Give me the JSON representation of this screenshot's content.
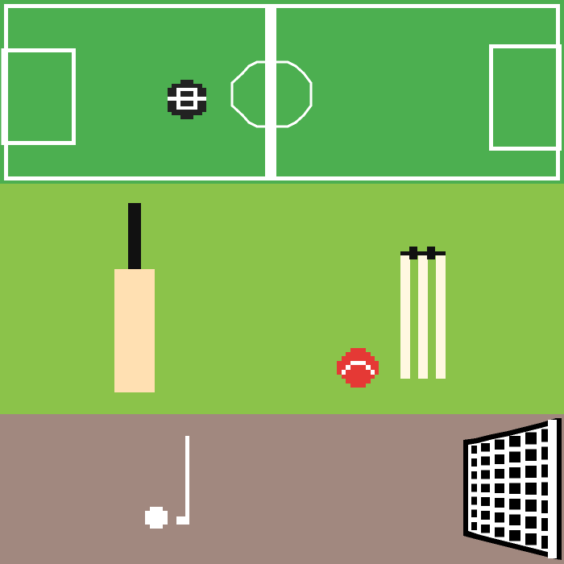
{
  "scenes": {
    "football": {
      "pitch_color": "#4caf50",
      "line_color": "#ffffff",
      "ball": {
        "fill": "#ffffff",
        "patches": "#222222",
        "icon": "soccer-ball-icon"
      }
    },
    "cricket": {
      "field_color": "#8bc34a",
      "bat": {
        "handle": "#111111",
        "blade": "#ffe0b2",
        "icon": "cricket-bat-icon"
      },
      "ball": {
        "color": "#e53935",
        "seam": "#ffffff",
        "icon": "cricket-ball-icon"
      },
      "stumps": {
        "color": "#fff8e1",
        "bails": "#111111",
        "icon": "cricket-stumps-icon"
      }
    },
    "hockey": {
      "ground_color": "#a1887f",
      "stick": {
        "color": "#ffffff",
        "icon": "hockey-stick-icon"
      },
      "ball": {
        "color": "#ffffff",
        "icon": "hockey-ball-icon"
      },
      "goal": {
        "net": "#ffffff",
        "frame": "#000000",
        "icon": "goal-net-icon"
      }
    }
  }
}
